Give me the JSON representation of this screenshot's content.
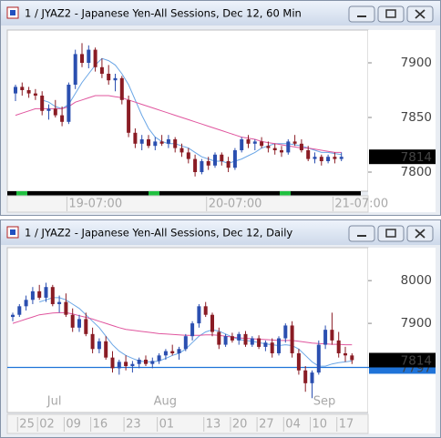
{
  "windows": [
    {
      "title": "1 / JYAZ2 - Japanese Yen-All Sessions, Dec 12, 60 Min",
      "chart": {
        "type": "candlestick",
        "ylim": [
          7782.5,
          7930
        ],
        "yticks": [
          7800,
          7850,
          7900
        ],
        "last": 7814,
        "up_color": "#2b4fb0",
        "down_color": "#8a1c24",
        "categories": [
          null,
          null,
          null,
          null,
          null,
          null,
          null,
          null,
          "19-07:00",
          null,
          null,
          null,
          null,
          null,
          null,
          null,
          null,
          null,
          null,
          null,
          null,
          null,
          null,
          null,
          null,
          null,
          null,
          null,
          null,
          "20-07:00",
          null,
          null,
          null,
          null,
          null,
          null,
          null,
          null,
          null,
          null,
          null,
          null,
          null,
          null,
          null,
          null,
          null,
          null,
          "21-07:00",
          null
        ],
        "candles": [
          [
            7872,
            7880,
            7865,
            7878
          ],
          [
            7878,
            7882,
            7870,
            7875
          ],
          [
            7875,
            7878,
            7868,
            7872
          ],
          [
            7872,
            7876,
            7866,
            7870
          ],
          [
            7870,
            7874,
            7852,
            7856
          ],
          [
            7856,
            7862,
            7848,
            7858
          ],
          [
            7858,
            7866,
            7850,
            7852
          ],
          [
            7852,
            7860,
            7842,
            7846
          ],
          [
            7846,
            7882,
            7844,
            7880
          ],
          [
            7880,
            7912,
            7876,
            7908
          ],
          [
            7908,
            7918,
            7896,
            7900
          ],
          [
            7900,
            7916,
            7895,
            7912
          ],
          [
            7912,
            7914,
            7892,
            7896
          ],
          [
            7896,
            7904,
            7886,
            7890
          ],
          [
            7890,
            7898,
            7880,
            7884
          ],
          [
            7884,
            7890,
            7874,
            7886
          ],
          [
            7886,
            7888,
            7862,
            7866
          ],
          [
            7866,
            7870,
            7832,
            7836
          ],
          [
            7836,
            7840,
            7822,
            7826
          ],
          [
            7826,
            7834,
            7820,
            7830
          ],
          [
            7830,
            7834,
            7822,
            7824
          ],
          [
            7824,
            7832,
            7820,
            7828
          ],
          [
            7828,
            7834,
            7824,
            7826
          ],
          [
            7826,
            7834,
            7822,
            7830
          ],
          [
            7830,
            7832,
            7818,
            7822
          ],
          [
            7822,
            7826,
            7814,
            7818
          ],
          [
            7818,
            7822,
            7808,
            7812
          ],
          [
            7812,
            7816,
            7796,
            7800
          ],
          [
            7800,
            7812,
            7798,
            7810
          ],
          [
            7810,
            7814,
            7802,
            7806
          ],
          [
            7806,
            7818,
            7804,
            7816
          ],
          [
            7816,
            7818,
            7806,
            7810
          ],
          [
            7810,
            7814,
            7800,
            7804
          ],
          [
            7804,
            7822,
            7802,
            7820
          ],
          [
            7820,
            7832,
            7818,
            7830
          ],
          [
            7830,
            7834,
            7822,
            7826
          ],
          [
            7826,
            7830,
            7820,
            7828
          ],
          [
            7828,
            7832,
            7822,
            7824
          ],
          [
            7824,
            7828,
            7818,
            7822
          ],
          [
            7822,
            7826,
            7816,
            7820
          ],
          [
            7820,
            7824,
            7814,
            7818
          ],
          [
            7818,
            7830,
            7816,
            7828
          ],
          [
            7828,
            7834,
            7824,
            7826
          ],
          [
            7826,
            7830,
            7818,
            7820
          ],
          [
            7820,
            7824,
            7810,
            7812
          ],
          [
            7812,
            7818,
            7808,
            7814
          ],
          [
            7814,
            7816,
            7806,
            7810
          ],
          [
            7810,
            7816,
            7808,
            7814
          ],
          [
            7814,
            7818,
            7808,
            7812
          ],
          [
            7812,
            7818,
            7810,
            7814
          ]
        ],
        "series": [
          {
            "color": "#6aa6e6",
            "values": [
              null,
              null,
              null,
              null,
              7866,
              7864,
              7860,
              7858,
              7862,
              7872,
              7882,
              7890,
              7898,
              7904,
              7902,
              7898,
              7890,
              7880,
              7866,
              7852,
              7840,
              7832,
              7828,
              7826,
              7826,
              7824,
              7822,
              7818,
              7814,
              7812,
              7810,
              7810,
              7808,
              7810,
              7812,
              7815,
              7818,
              7822,
              7824,
              7826,
              7826,
              7826,
              7825,
              7824,
              7822,
              7820,
              7818,
              7818,
              7817,
              7816
            ]
          },
          {
            "color": "#e0559e",
            "values": [
              7852,
              7854,
              7856,
              7858,
              7858,
              7858,
              7858,
              7858,
              7860,
              7864,
              7866,
              7868,
              7870,
              7870,
              7870,
              7869,
              7868,
              7866,
              7864,
              7862,
              7860,
              7858,
              7856,
              7854,
              7852,
              7850,
              7848,
              7846,
              7844,
              7842,
              7840,
              7838,
              7836,
              7834,
              7832,
              7831,
              7830,
              7828,
              7827,
              7826,
              7825,
              7824,
              7823,
              7822,
              7822,
              7821,
              7820,
              7819,
              7818,
              7818
            ]
          }
        ]
      }
    },
    {
      "title": "1 / JYAZ2 - Japanese Yen-All Sessions, Dec 12, Daily",
      "chart": {
        "type": "candlestick",
        "ylim": [
          7691.5,
          8077
        ],
        "yticks": [
          7900,
          8000
        ],
        "last": 7814,
        "up_color": "#2b4fb0",
        "down_color": "#8a1c24",
        "hline": {
          "value": 7797,
          "color": "#1f73d8"
        },
        "months": [
          null,
          null,
          null,
          null,
          null,
          null,
          "Jul",
          null,
          null,
          null,
          null,
          null,
          null,
          null,
          null,
          null,
          null,
          null,
          null,
          null,
          null,
          null,
          "Aug",
          null,
          null,
          null,
          null,
          null,
          null,
          null,
          null,
          null,
          null,
          null,
          null,
          null,
          null,
          null,
          null,
          null,
          null,
          null,
          null,
          null,
          null,
          null,
          "Sep",
          null,
          null,
          null,
          null,
          null
        ],
        "categories": [
          null,
          "25",
          null,
          null,
          "02",
          null,
          null,
          null,
          "09",
          null,
          null,
          null,
          "16",
          null,
          null,
          null,
          null,
          "23",
          null,
          null,
          null,
          null,
          "01",
          null,
          null,
          null,
          null,
          null,
          null,
          "13",
          null,
          null,
          null,
          "20",
          null,
          null,
          null,
          "27",
          null,
          null,
          null,
          "04",
          null,
          null,
          null,
          "10",
          null,
          null,
          null,
          "17",
          null,
          null
        ],
        "candles": [
          [
            7915,
            7925,
            7905,
            7920
          ],
          [
            7920,
            7945,
            7915,
            7940
          ],
          [
            7940,
            7965,
            7930,
            7955
          ],
          [
            7955,
            7985,
            7945,
            7975
          ],
          [
            7975,
            7990,
            7955,
            7960
          ],
          [
            7960,
            7995,
            7950,
            7985
          ],
          [
            7985,
            7990,
            7940,
            7945
          ],
          [
            7945,
            7965,
            7925,
            7950
          ],
          [
            7950,
            7970,
            7915,
            7920
          ],
          [
            7920,
            7935,
            7880,
            7890
          ],
          [
            7890,
            7920,
            7880,
            7910
          ],
          [
            7910,
            7925,
            7870,
            7875
          ],
          [
            7875,
            7890,
            7830,
            7840
          ],
          [
            7840,
            7865,
            7830,
            7858
          ],
          [
            7858,
            7870,
            7815,
            7820
          ],
          [
            7820,
            7835,
            7785,
            7795
          ],
          [
            7795,
            7815,
            7780,
            7810
          ],
          [
            7810,
            7825,
            7790,
            7800
          ],
          [
            7800,
            7812,
            7785,
            7805
          ],
          [
            7805,
            7820,
            7795,
            7815
          ],
          [
            7815,
            7825,
            7800,
            7805
          ],
          [
            7805,
            7820,
            7795,
            7812
          ],
          [
            7812,
            7830,
            7805,
            7825
          ],
          [
            7825,
            7840,
            7815,
            7835
          ],
          [
            7835,
            7850,
            7825,
            7830
          ],
          [
            7830,
            7845,
            7815,
            7840
          ],
          [
            7840,
            7875,
            7835,
            7870
          ],
          [
            7870,
            7905,
            7860,
            7900
          ],
          [
            7900,
            7945,
            7890,
            7940
          ],
          [
            7940,
            7950,
            7915,
            7920
          ],
          [
            7920,
            7925,
            7870,
            7880
          ],
          [
            7880,
            7890,
            7840,
            7850
          ],
          [
            7850,
            7875,
            7845,
            7870
          ],
          [
            7870,
            7878,
            7855,
            7860
          ],
          [
            7860,
            7880,
            7850,
            7875
          ],
          [
            7875,
            7882,
            7845,
            7850
          ],
          [
            7850,
            7870,
            7845,
            7865
          ],
          [
            7865,
            7872,
            7840,
            7845
          ],
          [
            7845,
            7860,
            7835,
            7855
          ],
          [
            7855,
            7865,
            7820,
            7830
          ],
          [
            7830,
            7870,
            7825,
            7865
          ],
          [
            7865,
            7900,
            7855,
            7895
          ],
          [
            7895,
            7905,
            7820,
            7830
          ],
          [
            7830,
            7840,
            7780,
            7790
          ],
          [
            7790,
            7800,
            7740,
            7760
          ],
          [
            7760,
            7790,
            7725,
            7785
          ],
          [
            7785,
            7860,
            7780,
            7850
          ],
          [
            7850,
            7895,
            7840,
            7885
          ],
          [
            7885,
            7925,
            7850,
            7860
          ],
          [
            7860,
            7880,
            7820,
            7830
          ],
          [
            7830,
            7845,
            7810,
            7825
          ],
          [
            7825,
            7830,
            7805,
            7814
          ]
        ],
        "series": [
          {
            "color": "#6aa6e6",
            "values": [
              null,
              null,
              null,
              null,
              7950,
              7955,
              7960,
              7960,
              7955,
              7945,
              7935,
              7920,
              7905,
              7890,
              7870,
              7850,
              7835,
              7825,
              7818,
              7812,
              7810,
              7810,
              7812,
              7818,
              7825,
              7830,
              7840,
              7855,
              7870,
              7880,
              7885,
              7882,
              7875,
              7868,
              7862,
              7860,
              7858,
              7855,
              7852,
              7850,
              7848,
              7850,
              7848,
              7840,
              7825,
              7810,
              7800,
              7800,
              7805,
              7808,
              7810,
              7812
            ]
          },
          {
            "color": "#e0559e",
            "values": [
              7900,
              7905,
              7910,
              7915,
              7920,
              7922,
              7924,
              7925,
              7925,
              7922,
              7918,
              7914,
              7910,
              7905,
              7900,
              7895,
              7890,
              7886,
              7884,
              7882,
              7880,
              7878,
              7876,
              7875,
              7874,
              7873,
              7872,
              7872,
              7872,
              7873,
              7873,
              7872,
              7870,
              7868,
              7866,
              7865,
              7864,
              7863,
              7862,
              7861,
              7860,
              7860,
              7860,
              7858,
              7856,
              7854,
              7853,
              7852,
              7851,
              7851,
              7850,
              7850
            ]
          }
        ]
      }
    }
  ]
}
